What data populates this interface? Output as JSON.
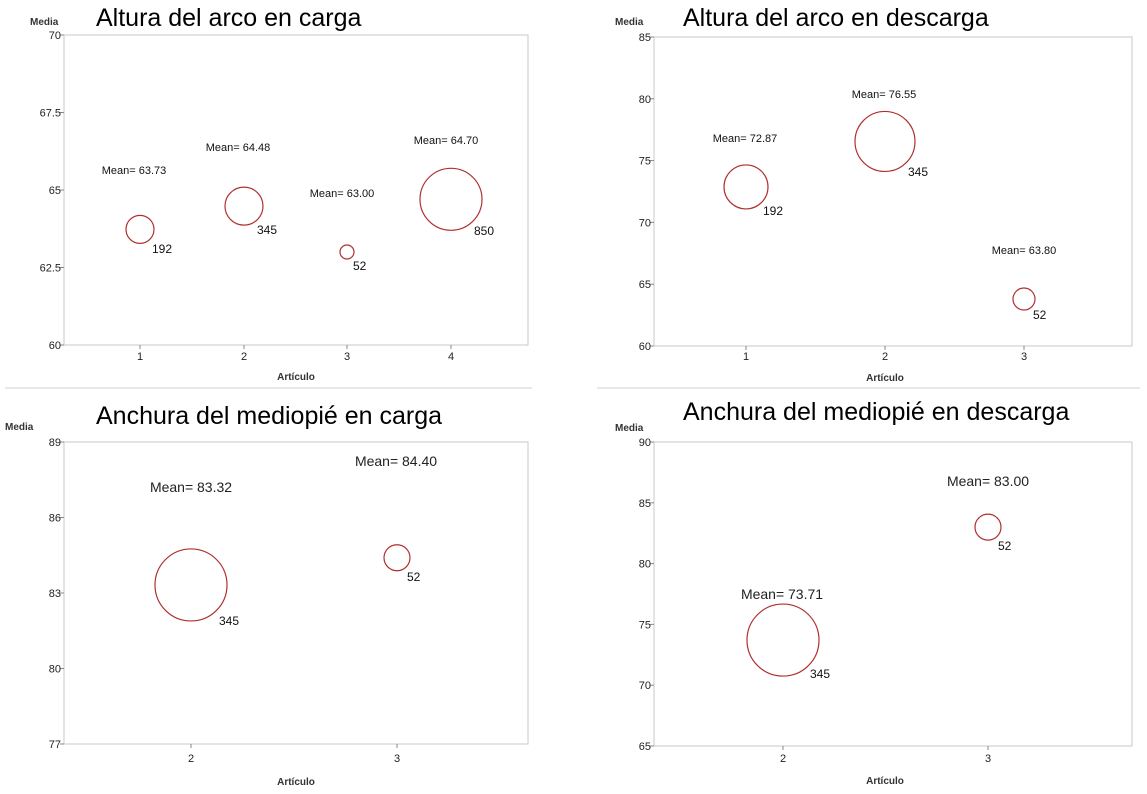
{
  "chart_data": [
    {
      "type": "scatter",
      "title": "Altura del arco en carga",
      "ylabel": "Media",
      "xlabel": "Artículo",
      "ylim": [
        60,
        70
      ],
      "yticks": [
        "60",
        "62.5",
        "65",
        "67.5",
        "70"
      ],
      "yticks_values": [
        60,
        62.5,
        65,
        67.5,
        70
      ],
      "x": [
        1,
        2,
        3,
        4
      ],
      "xticks": [
        "1",
        "2",
        "3",
        "4"
      ],
      "values": [
        63.73,
        64.48,
        63.0,
        64.7
      ],
      "mean_labels": [
        "Mean= 63.73",
        "Mean= 64.48",
        "Mean= 63.00",
        "Mean= 64.70"
      ],
      "n_labels": [
        "192",
        "345",
        "52",
        "850"
      ],
      "sizes": [
        192,
        345,
        52,
        850
      ],
      "bubble_color": "#b03030",
      "grid": false
    },
    {
      "type": "scatter",
      "title": "Altura del arco en descarga",
      "ylabel": "Media",
      "xlabel": "Artículo",
      "ylim": [
        60,
        85
      ],
      "yticks": [
        "60",
        "65",
        "70",
        "75",
        "80",
        "85"
      ],
      "yticks_values": [
        60,
        65,
        70,
        75,
        80,
        85
      ],
      "x": [
        1,
        2,
        3
      ],
      "xticks": [
        "1",
        "2",
        "3"
      ],
      "values": [
        72.87,
        76.55,
        63.8
      ],
      "mean_labels": [
        "Mean= 72.87",
        "Mean= 76.55",
        "Mean= 63.80"
      ],
      "n_labels": [
        "192",
        "345",
        "52"
      ],
      "sizes": [
        192,
        345,
        52
      ],
      "bubble_color": "#b03030",
      "grid": false
    },
    {
      "type": "scatter",
      "title": "Anchura del mediopié en carga",
      "ylabel": "Media",
      "xlabel": "Artículo",
      "ylim": [
        77,
        89
      ],
      "yticks": [
        "77",
        "80",
        "83",
        "86",
        "89"
      ],
      "yticks_values": [
        77,
        80,
        83,
        86,
        89
      ],
      "x": [
        2,
        3
      ],
      "xticks": [
        "2",
        "3"
      ],
      "values": [
        83.32,
        84.4
      ],
      "mean_labels": [
        "Mean= 83.32",
        "Mean= 84.40"
      ],
      "n_labels": [
        "345",
        "52"
      ],
      "sizes": [
        345,
        52
      ],
      "bubble_color": "#b03030",
      "grid": false
    },
    {
      "type": "scatter",
      "title": "Anchura del mediopié en descarga",
      "ylabel": "Media",
      "xlabel": "Artículo",
      "ylim": [
        65,
        90
      ],
      "yticks": [
        "65",
        "70",
        "75",
        "80",
        "85",
        "90"
      ],
      "yticks_values": [
        65,
        70,
        75,
        80,
        85,
        90
      ],
      "x": [
        2,
        3
      ],
      "xticks": [
        "2",
        "3"
      ],
      "values": [
        73.71,
        83.0
      ],
      "mean_labels": [
        "Mean= 73.71",
        "Mean= 83.00"
      ],
      "n_labels": [
        "345",
        "52"
      ],
      "sizes": [
        345,
        52
      ],
      "bubble_color": "#b03030",
      "grid": false
    }
  ]
}
